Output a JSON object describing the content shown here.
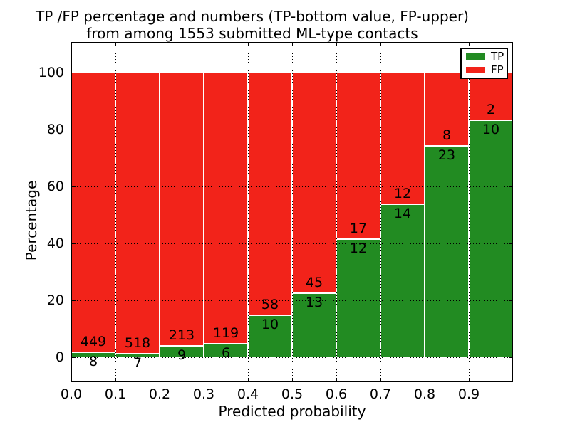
{
  "figure": {
    "title_line1": "TP /FP percentage and numbers (TP-bottom value, FP-upper)",
    "title_line2": "from among 1553 submitted ML-type contacts"
  },
  "axes": {
    "xlabel": "Predicted probability",
    "ylabel": "Percentage",
    "x_tick_labels": [
      "0.0",
      "0.1",
      "0.2",
      "0.3",
      "0.4",
      "0.5",
      "0.6",
      "0.7",
      "0.8",
      "0.9"
    ],
    "y_tick_labels": [
      "0",
      "20",
      "40",
      "60",
      "80",
      "100"
    ],
    "y_tick_values": [
      0,
      20,
      40,
      60,
      80,
      100
    ]
  },
  "legend": {
    "entries": [
      {
        "label": "TP",
        "color": "#228b22"
      },
      {
        "label": "FP",
        "color": "#f2231a"
      }
    ]
  },
  "chart_data": {
    "type": "bar",
    "subtype": "stacked-100-percent",
    "title": "TP /FP percentage and numbers (TP-bottom value, FP-upper) from among 1553 submitted ML-type contacts",
    "xlabel": "Predicted probability",
    "ylabel": "Percentage",
    "x_bin_edges": [
      0.0,
      0.1,
      0.2,
      0.3,
      0.4,
      0.5,
      0.6,
      0.7,
      0.8,
      0.9,
      1.0
    ],
    "x_tick_labels": [
      "0.0",
      "0.1",
      "0.2",
      "0.3",
      "0.4",
      "0.5",
      "0.6",
      "0.7",
      "0.8",
      "0.9"
    ],
    "y_ticks": [
      0,
      20,
      40,
      60,
      80,
      100
    ],
    "ylim": [
      -10,
      110
    ],
    "grid": "dotted",
    "legend_position": "upper-right",
    "total_contacts": 1553,
    "series": [
      {
        "name": "TP",
        "color": "#228b22",
        "counts": [
          8,
          7,
          9,
          6,
          10,
          13,
          12,
          14,
          23,
          10
        ]
      },
      {
        "name": "FP",
        "color": "#f2231a",
        "counts": [
          449,
          518,
          213,
          119,
          58,
          45,
          17,
          12,
          8,
          2
        ]
      }
    ],
    "tp_percent_of_bin": [
      1.8,
      1.3,
      4.1,
      4.8,
      14.7,
      22.4,
      41.4,
      53.8,
      74.2,
      83.3
    ]
  }
}
